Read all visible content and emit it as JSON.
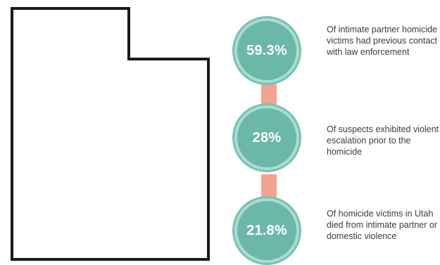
{
  "map": {
    "region": "Utah",
    "outline_color": "#1a1a1a"
  },
  "colors": {
    "circle_fill": "#6bb8a8",
    "circle_ring": "#a9dcd2",
    "connector": "#f2a48f",
    "text": "#3b3b3b"
  },
  "stats": [
    {
      "value": "59.3%",
      "description": "Of intimate partner homicide victims had previous contact with law enforcement"
    },
    {
      "value": "28%",
      "description": "Of suspects exhibited violent escalation prior to the homicide"
    },
    {
      "value": "21.8%",
      "description": "Of homicide victims in Utah died from intimate partner or domestic violence"
    }
  ]
}
